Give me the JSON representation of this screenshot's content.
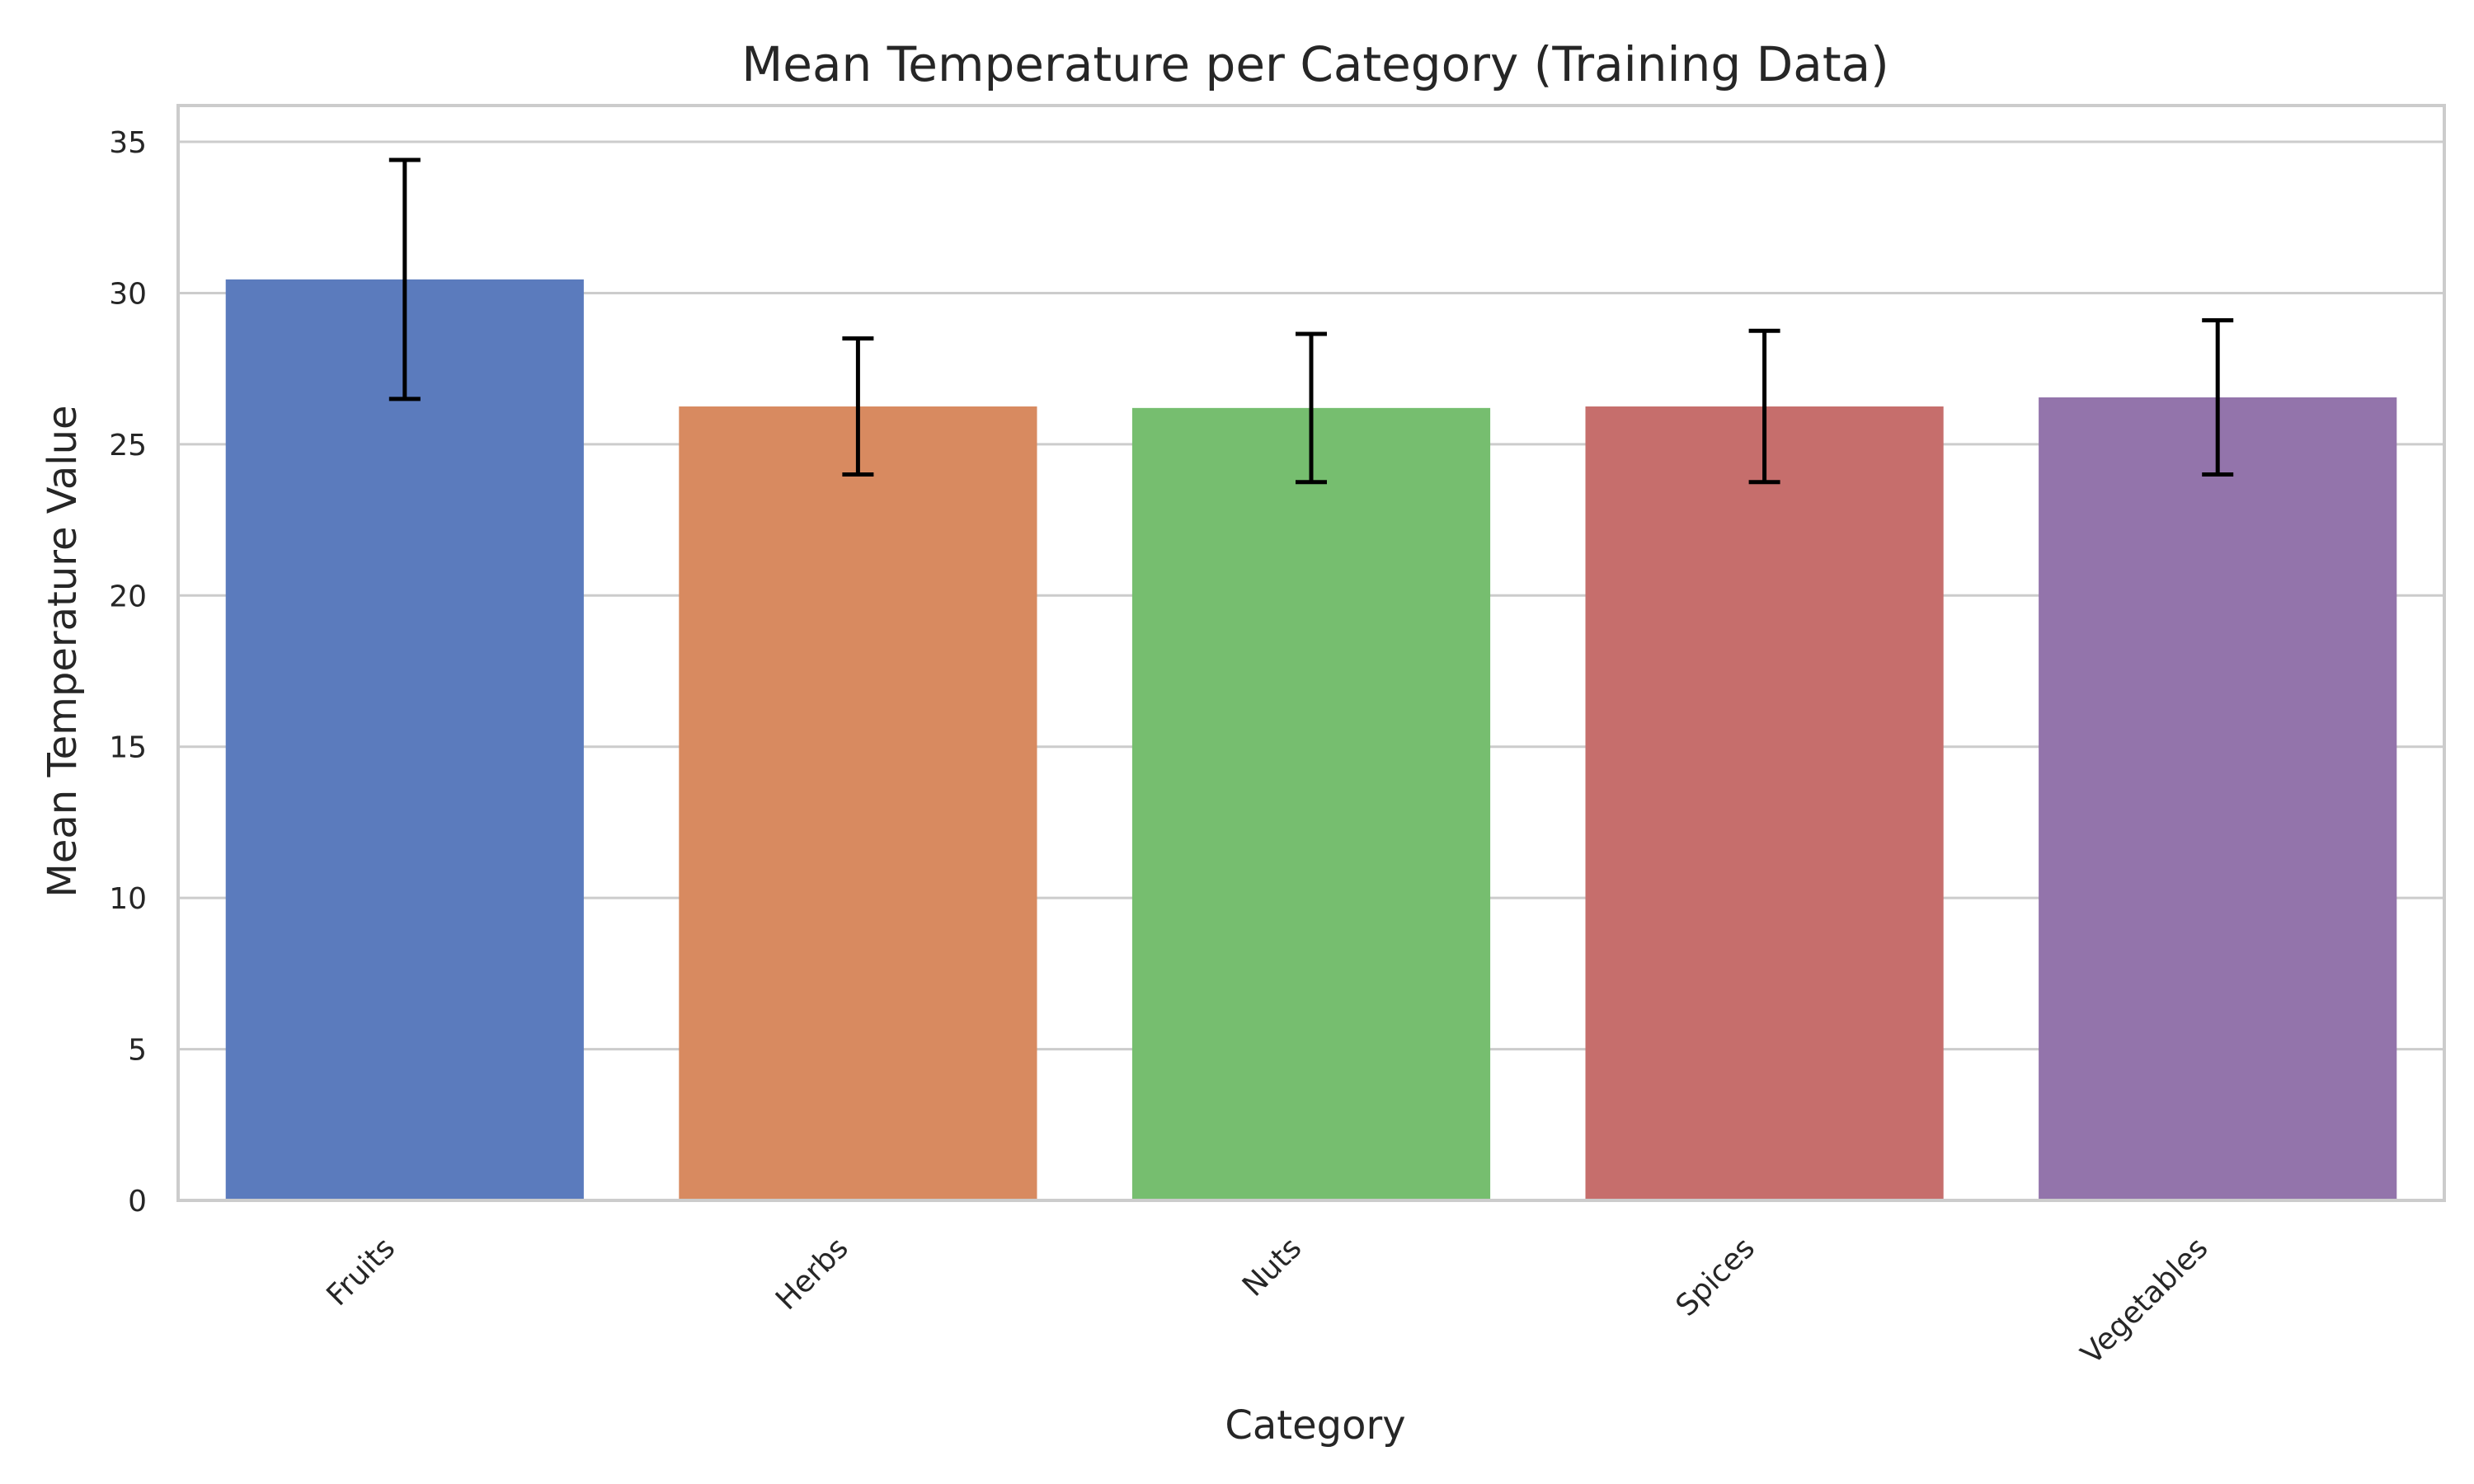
{
  "chart_data": {
    "type": "bar",
    "title": "Mean Temperature per Category (Training Data)",
    "xlabel": "Category",
    "ylabel": "Mean Temperature Value",
    "categories": [
      "Fruits",
      "Herbs",
      "Nuts",
      "Spices",
      "Vegetables"
    ],
    "values": [
      30.45,
      26.25,
      26.2,
      26.25,
      26.55
    ],
    "error": [
      3.95,
      2.25,
      2.45,
      2.5,
      2.55
    ],
    "colors": [
      "#5b7bbd",
      "#d88a60",
      "#76be6f",
      "#c66e6c",
      "#9374ab"
    ],
    "ylim": [
      0,
      36.2
    ],
    "yticks": [
      0,
      5,
      10,
      15,
      20,
      25,
      30,
      35
    ],
    "grid": "y",
    "legend": "none"
  }
}
